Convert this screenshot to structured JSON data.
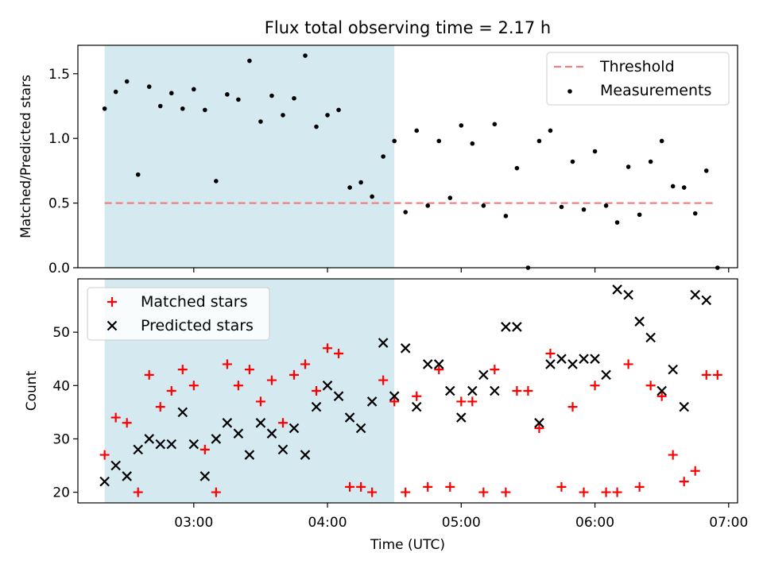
{
  "figure": {
    "title": "Flux total observing time = 2.17 h"
  },
  "chart_data": [
    {
      "type": "scatter",
      "panel": "top",
      "ylabel": "Matched/Predicted stars",
      "xlabel": "",
      "ylim": [
        0,
        1.72
      ],
      "yticks": [
        "0.0",
        "0.5",
        "1.0",
        "1.5"
      ],
      "ytick_values": [
        0,
        0.5,
        1.0,
        1.5
      ],
      "grid": false,
      "legend_placement": "top-right",
      "shaded_span": {
        "from": "02:20",
        "to": "04:30",
        "color": "#d4eaf0"
      },
      "threshold": {
        "name": "Threshold",
        "value": 0.5,
        "from": "02:20",
        "to": "06:54",
        "color": "#f08080",
        "style": "dashed"
      },
      "series": [
        {
          "name": "Measurements",
          "color": "#000000",
          "marker": "dot",
          "points": [
            [
              "02:20",
              1.23
            ],
            [
              "02:25",
              1.36
            ],
            [
              "02:30",
              1.44
            ],
            [
              "02:35",
              0.72
            ],
            [
              "02:40",
              1.4
            ],
            [
              "02:45",
              1.25
            ],
            [
              "02:50",
              1.35
            ],
            [
              "02:55",
              1.23
            ],
            [
              "03:00",
              1.38
            ],
            [
              "03:05",
              1.22
            ],
            [
              "03:10",
              0.67
            ],
            [
              "03:15",
              1.34
            ],
            [
              "03:20",
              1.3
            ],
            [
              "03:25",
              1.6
            ],
            [
              "03:30",
              1.13
            ],
            [
              "03:35",
              1.33
            ],
            [
              "03:40",
              1.18
            ],
            [
              "03:45",
              1.31
            ],
            [
              "03:50",
              1.64
            ],
            [
              "03:55",
              1.09
            ],
            [
              "04:00",
              1.18
            ],
            [
              "04:05",
              1.22
            ],
            [
              "04:10",
              0.62
            ],
            [
              "04:15",
              0.66
            ],
            [
              "04:20",
              0.55
            ],
            [
              "04:25",
              0.86
            ],
            [
              "04:30",
              0.98
            ],
            [
              "04:35",
              0.43
            ],
            [
              "04:40",
              1.06
            ],
            [
              "04:45",
              0.48
            ],
            [
              "04:50",
              0.98
            ],
            [
              "04:55",
              0.54
            ],
            [
              "05:00",
              1.1
            ],
            [
              "05:05",
              0.96
            ],
            [
              "05:10",
              0.48
            ],
            [
              "05:15",
              1.11
            ],
            [
              "05:20",
              0.4
            ],
            [
              "05:25",
              0.77
            ],
            [
              "05:30",
              0.0
            ],
            [
              "05:35",
              0.98
            ],
            [
              "05:40",
              1.06
            ],
            [
              "05:45",
              0.47
            ],
            [
              "05:50",
              0.82
            ],
            [
              "05:55",
              0.45
            ],
            [
              "06:00",
              0.9
            ],
            [
              "06:05",
              0.48
            ],
            [
              "06:10",
              0.35
            ],
            [
              "06:15",
              0.78
            ],
            [
              "06:20",
              0.41
            ],
            [
              "06:25",
              0.82
            ],
            [
              "06:30",
              0.98
            ],
            [
              "06:35",
              0.63
            ],
            [
              "06:40",
              0.62
            ],
            [
              "06:45",
              0.42
            ],
            [
              "06:50",
              0.75
            ],
            [
              "06:55",
              0.0
            ]
          ]
        }
      ]
    },
    {
      "type": "scatter",
      "panel": "bottom",
      "ylabel": "Count",
      "xlabel": "Time (UTC)",
      "ylim": [
        18,
        60
      ],
      "yticks": [
        "20",
        "30",
        "40",
        "50"
      ],
      "ytick_values": [
        20,
        30,
        40,
        50
      ],
      "xlim": [
        "02:08",
        "07:04"
      ],
      "xticks": [
        "03:00",
        "04:00",
        "05:00",
        "06:00",
        "07:00"
      ],
      "grid": false,
      "legend_placement": "top-left",
      "shaded_span": {
        "from": "02:20",
        "to": "04:30",
        "color": "#d4eaf0"
      },
      "series": [
        {
          "name": "Matched stars",
          "color": "#ff0000",
          "marker": "plus",
          "points": [
            [
              "02:20",
              27
            ],
            [
              "02:25",
              34
            ],
            [
              "02:30",
              33
            ],
            [
              "02:35",
              20
            ],
            [
              "02:40",
              42
            ],
            [
              "02:45",
              36
            ],
            [
              "02:50",
              39
            ],
            [
              "02:55",
              43
            ],
            [
              "03:00",
              40
            ],
            [
              "03:05",
              28
            ],
            [
              "03:10",
              20
            ],
            [
              "03:15",
              44
            ],
            [
              "03:20",
              40
            ],
            [
              "03:25",
              43
            ],
            [
              "03:30",
              37
            ],
            [
              "03:35",
              41
            ],
            [
              "03:40",
              33
            ],
            [
              "03:45",
              42
            ],
            [
              "03:50",
              44
            ],
            [
              "03:55",
              39
            ],
            [
              "04:00",
              47
            ],
            [
              "04:05",
              46
            ],
            [
              "04:10",
              21
            ],
            [
              "04:15",
              21
            ],
            [
              "04:20",
              20
            ],
            [
              "04:25",
              41
            ],
            [
              "04:30",
              37
            ],
            [
              "04:35",
              20
            ],
            [
              "04:40",
              38
            ],
            [
              "04:45",
              21
            ],
            [
              "04:50",
              43
            ],
            [
              "04:55",
              21
            ],
            [
              "05:00",
              37
            ],
            [
              "05:05",
              37
            ],
            [
              "05:10",
              20
            ],
            [
              "05:15",
              43
            ],
            [
              "05:20",
              20
            ],
            [
              "05:25",
              39
            ],
            [
              "05:30",
              39
            ],
            [
              "05:35",
              32
            ],
            [
              "05:40",
              46
            ],
            [
              "05:45",
              21
            ],
            [
              "05:50",
              36
            ],
            [
              "05:55",
              20
            ],
            [
              "06:00",
              40
            ],
            [
              "06:05",
              20
            ],
            [
              "06:10",
              20
            ],
            [
              "06:15",
              44
            ],
            [
              "06:20",
              21
            ],
            [
              "06:25",
              40
            ],
            [
              "06:30",
              38
            ],
            [
              "06:35",
              27
            ],
            [
              "06:40",
              22
            ],
            [
              "06:45",
              24
            ],
            [
              "06:50",
              42
            ],
            [
              "06:55",
              42
            ]
          ]
        },
        {
          "name": "Predicted stars",
          "color": "#000000",
          "marker": "x",
          "points": [
            [
              "02:20",
              22
            ],
            [
              "02:25",
              25
            ],
            [
              "02:30",
              23
            ],
            [
              "02:35",
              28
            ],
            [
              "02:40",
              30
            ],
            [
              "02:45",
              29
            ],
            [
              "02:50",
              29
            ],
            [
              "02:55",
              35
            ],
            [
              "03:00",
              29
            ],
            [
              "03:05",
              23
            ],
            [
              "03:10",
              30
            ],
            [
              "03:15",
              33
            ],
            [
              "03:20",
              31
            ],
            [
              "03:25",
              27
            ],
            [
              "03:30",
              33
            ],
            [
              "03:35",
              31
            ],
            [
              "03:40",
              28
            ],
            [
              "03:45",
              32
            ],
            [
              "03:50",
              27
            ],
            [
              "03:55",
              36
            ],
            [
              "04:00",
              40
            ],
            [
              "04:05",
              38
            ],
            [
              "04:10",
              34
            ],
            [
              "04:15",
              32
            ],
            [
              "04:20",
              37
            ],
            [
              "04:25",
              48
            ],
            [
              "04:30",
              38
            ],
            [
              "04:35",
              47
            ],
            [
              "04:40",
              36
            ],
            [
              "04:45",
              44
            ],
            [
              "04:50",
              44
            ],
            [
              "04:55",
              39
            ],
            [
              "05:00",
              34
            ],
            [
              "05:05",
              39
            ],
            [
              "05:10",
              42
            ],
            [
              "05:15",
              39
            ],
            [
              "05:20",
              51
            ],
            [
              "05:25",
              51
            ],
            [
              "05:35",
              33
            ],
            [
              "05:40",
              44
            ],
            [
              "05:45",
              45
            ],
            [
              "05:50",
              44
            ],
            [
              "05:55",
              45
            ],
            [
              "06:00",
              45
            ],
            [
              "06:05",
              42
            ],
            [
              "06:10",
              58
            ],
            [
              "06:15",
              57
            ],
            [
              "06:20",
              52
            ],
            [
              "06:25",
              49
            ],
            [
              "06:30",
              39
            ],
            [
              "06:35",
              43
            ],
            [
              "06:40",
              36
            ],
            [
              "06:45",
              57
            ],
            [
              "06:50",
              56
            ]
          ]
        }
      ]
    }
  ]
}
